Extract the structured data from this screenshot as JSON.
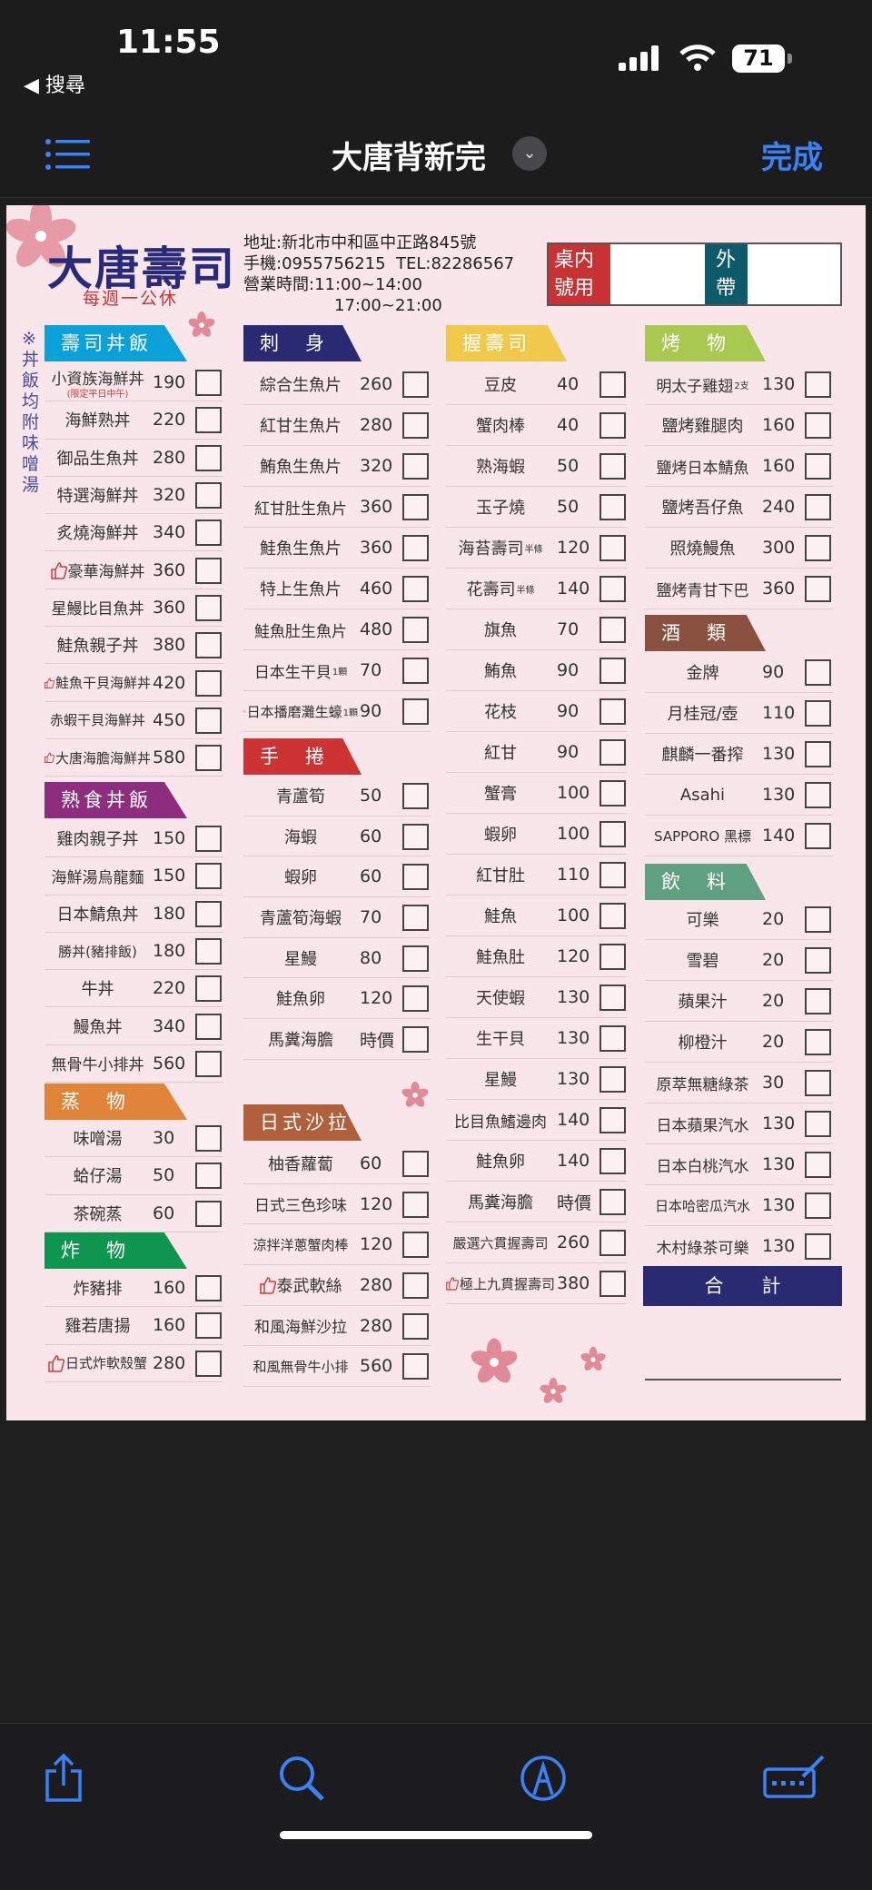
{
  "status": {
    "time": "11:55",
    "back_label": "◀ 搜尋",
    "battery": "71"
  },
  "nav": {
    "title": "大唐背新完",
    "done": "完成"
  },
  "menu": {
    "title": "大唐壽司",
    "closed": "每週一公休",
    "info": [
      "地址:新北市中和區中正路845號",
      "手機:0955756215  TEL:82286567",
      "營業時間:11:00~14:00",
      "17:00~21:00"
    ],
    "dinein": "桌内號用",
    "takeout": "外帶",
    "side_note": "※丼飯均附味噌湯",
    "total_label": "合　　計",
    "columns": [
      {
        "sections": [
          {
            "title": "壽司丼飯",
            "color": "#0aa0d8",
            "items": [
              {
                "name": "小資族海鮮丼",
                "price": "190",
                "note": "(限定平日中午)"
              },
              {
                "name": "海鮮熟丼",
                "price": "220"
              },
              {
                "name": "御品生魚丼",
                "price": "280"
              },
              {
                "name": "特選海鮮丼",
                "price": "320"
              },
              {
                "name": "炙燒海鮮丼",
                "price": "340"
              },
              {
                "name": "豪華海鮮丼",
                "price": "360",
                "thumb": true
              },
              {
                "name": "星鰻比目魚丼",
                "price": "360"
              },
              {
                "name": "鮭魚親子丼",
                "price": "380"
              },
              {
                "name": "鮭魚干貝海鮮丼",
                "price": "420",
                "thumb": true
              },
              {
                "name": "赤蝦干貝海鮮丼",
                "price": "450"
              },
              {
                "name": "大唐海膽海鮮丼",
                "price": "580",
                "thumb": true
              }
            ]
          },
          {
            "title": "熟食丼飯",
            "color": "#8e2c7e",
            "items": [
              {
                "name": "雞肉親子丼",
                "price": "150"
              },
              {
                "name": "海鮮湯烏龍麵",
                "price": "150"
              },
              {
                "name": "日本鯖魚丼",
                "price": "180"
              },
              {
                "name": "勝丼(豬排飯)",
                "price": "180"
              },
              {
                "name": "牛丼",
                "price": "220"
              },
              {
                "name": "鰻魚丼",
                "price": "340"
              },
              {
                "name": "無骨牛小排丼",
                "price": "560"
              }
            ]
          },
          {
            "title": "蒸　物",
            "color": "#e0843a",
            "items": [
              {
                "name": "味噌湯",
                "price": "30"
              },
              {
                "name": "蛤仔湯",
                "price": "50"
              },
              {
                "name": "茶碗蒸",
                "price": "60"
              }
            ]
          },
          {
            "title": "炸　物",
            "color": "#0e9650",
            "items": [
              {
                "name": "炸豬排",
                "price": "160"
              },
              {
                "name": "雞若唐揚",
                "price": "160"
              },
              {
                "name": "日式炸軟殼蟹",
                "price": "280",
                "thumb": true
              }
            ]
          }
        ]
      },
      {
        "sections": [
          {
            "title": "刺　身",
            "color": "#2a2a72",
            "items": [
              {
                "name": "綜合生魚片",
                "price": "260"
              },
              {
                "name": "紅甘生魚片",
                "price": "280"
              },
              {
                "name": "鮪魚生魚片",
                "price": "320"
              },
              {
                "name": "紅甘肚生魚片",
                "price": "360"
              },
              {
                "name": "鮭魚生魚片",
                "price": "360"
              },
              {
                "name": "特上生魚片",
                "price": "460"
              },
              {
                "name": "鮭魚肚生魚片",
                "price": "480"
              },
              {
                "name": "日本生干貝",
                "suffix": "1顆",
                "price": "70"
              },
              {
                "name": "日本播磨灘生蠔",
                "suffix": "1顆",
                "price": "90",
                "thumb": true
              }
            ]
          },
          {
            "title": "手　捲",
            "color": "#cc3333",
            "items": [
              {
                "name": "青蘆筍",
                "price": "50"
              },
              {
                "name": "海蝦",
                "price": "60"
              },
              {
                "name": "蝦卵",
                "price": "60"
              },
              {
                "name": "青蘆筍海蝦",
                "price": "70"
              },
              {
                "name": "星鰻",
                "price": "80"
              },
              {
                "name": "鮭魚卵",
                "price": "120"
              },
              {
                "name": "馬糞海膽",
                "price": "時價"
              }
            ]
          },
          {
            "title": "日式沙拉",
            "color": "#b0603a",
            "items": [
              {
                "name": "柚香蘿蔔",
                "price": "60"
              },
              {
                "name": "日式三色珍味",
                "price": "120"
              },
              {
                "name": "涼拌洋蔥蟹肉棒",
                "price": "120"
              },
              {
                "name": "泰武軟絲",
                "price": "280",
                "thumb": true
              },
              {
                "name": "和風海鮮沙拉",
                "price": "280"
              },
              {
                "name": "和風無骨牛小排",
                "price": "560"
              }
            ]
          }
        ]
      },
      {
        "sections": [
          {
            "title": "握壽司",
            "color": "#f0c84a",
            "items": [
              {
                "name": "豆皮",
                "price": "40"
              },
              {
                "name": "蟹肉棒",
                "price": "40"
              },
              {
                "name": "熟海蝦",
                "price": "50"
              },
              {
                "name": "玉子燒",
                "price": "50"
              },
              {
                "name": "海苔壽司",
                "suffix": "半條",
                "price": "120"
              },
              {
                "name": "花壽司",
                "suffix": "半條",
                "price": "140"
              },
              {
                "name": "旗魚",
                "price": "70"
              },
              {
                "name": "鮪魚",
                "price": "90"
              },
              {
                "name": "花枝",
                "price": "90"
              },
              {
                "name": "紅甘",
                "price": "90"
              },
              {
                "name": "蟹膏",
                "price": "100"
              },
              {
                "name": "蝦卵",
                "price": "100"
              },
              {
                "name": "紅甘肚",
                "price": "110"
              },
              {
                "name": "鮭魚",
                "price": "100"
              },
              {
                "name": "鮭魚肚",
                "price": "120"
              },
              {
                "name": "天使蝦",
                "price": "130"
              },
              {
                "name": "生干貝",
                "price": "130"
              },
              {
                "name": "星鰻",
                "price": "130"
              },
              {
                "name": "比目魚鰭邊肉",
                "price": "140"
              },
              {
                "name": "鮭魚卵",
                "price": "140"
              },
              {
                "name": "馬糞海膽",
                "price": "時價"
              },
              {
                "name": "嚴選六貫握壽司",
                "price": "260"
              },
              {
                "name": "極上九貫握壽司",
                "price": "380",
                "thumb": true
              }
            ]
          }
        ]
      },
      {
        "sections": [
          {
            "title": "烤　物",
            "color": "#a8c850",
            "items": [
              {
                "name": "明太子雞翅",
                "suffix": "2支",
                "price": "130"
              },
              {
                "name": "鹽烤雞腿肉",
                "price": "160"
              },
              {
                "name": "鹽烤日本鯖魚",
                "price": "160"
              },
              {
                "name": "鹽烤吾仔魚",
                "price": "240"
              },
              {
                "name": "照燒鰻魚",
                "price": "300"
              },
              {
                "name": "鹽烤青甘下巴",
                "price": "360"
              }
            ]
          },
          {
            "title": "酒　類",
            "color": "#8a5040",
            "items": [
              {
                "name": "金牌",
                "price": "90"
              },
              {
                "name": "月桂冠/壺",
                "price": "110"
              },
              {
                "name": "麒麟一番搾",
                "price": "130"
              },
              {
                "name": "Asahi",
                "price": "130"
              },
              {
                "name": "SAPPORO 黑標",
                "price": "140"
              }
            ]
          },
          {
            "title": "飲　料",
            "color": "#5fa080",
            "items": [
              {
                "name": "可樂",
                "price": "20"
              },
              {
                "name": "雪碧",
                "price": "20"
              },
              {
                "name": "蘋果汁",
                "price": "20"
              },
              {
                "name": "柳橙汁",
                "price": "20"
              },
              {
                "name": "原萃無糖綠茶",
                "price": "30"
              },
              {
                "name": "日本蘋果汽水",
                "price": "130"
              },
              {
                "name": "日本白桃汽水",
                "price": "130"
              },
              {
                "name": "日本哈密瓜汽水",
                "price": "130"
              },
              {
                "name": "木村綠茶可樂",
                "price": "130"
              }
            ]
          }
        ]
      }
    ]
  },
  "colors": {
    "accent": "#3a82f7",
    "title_navy": "#2a2a7a",
    "flower": "#e08a98"
  },
  "toolbar": {
    "icons": [
      "share-icon",
      "search-icon",
      "markup-icon",
      "form-fill-icon"
    ]
  }
}
